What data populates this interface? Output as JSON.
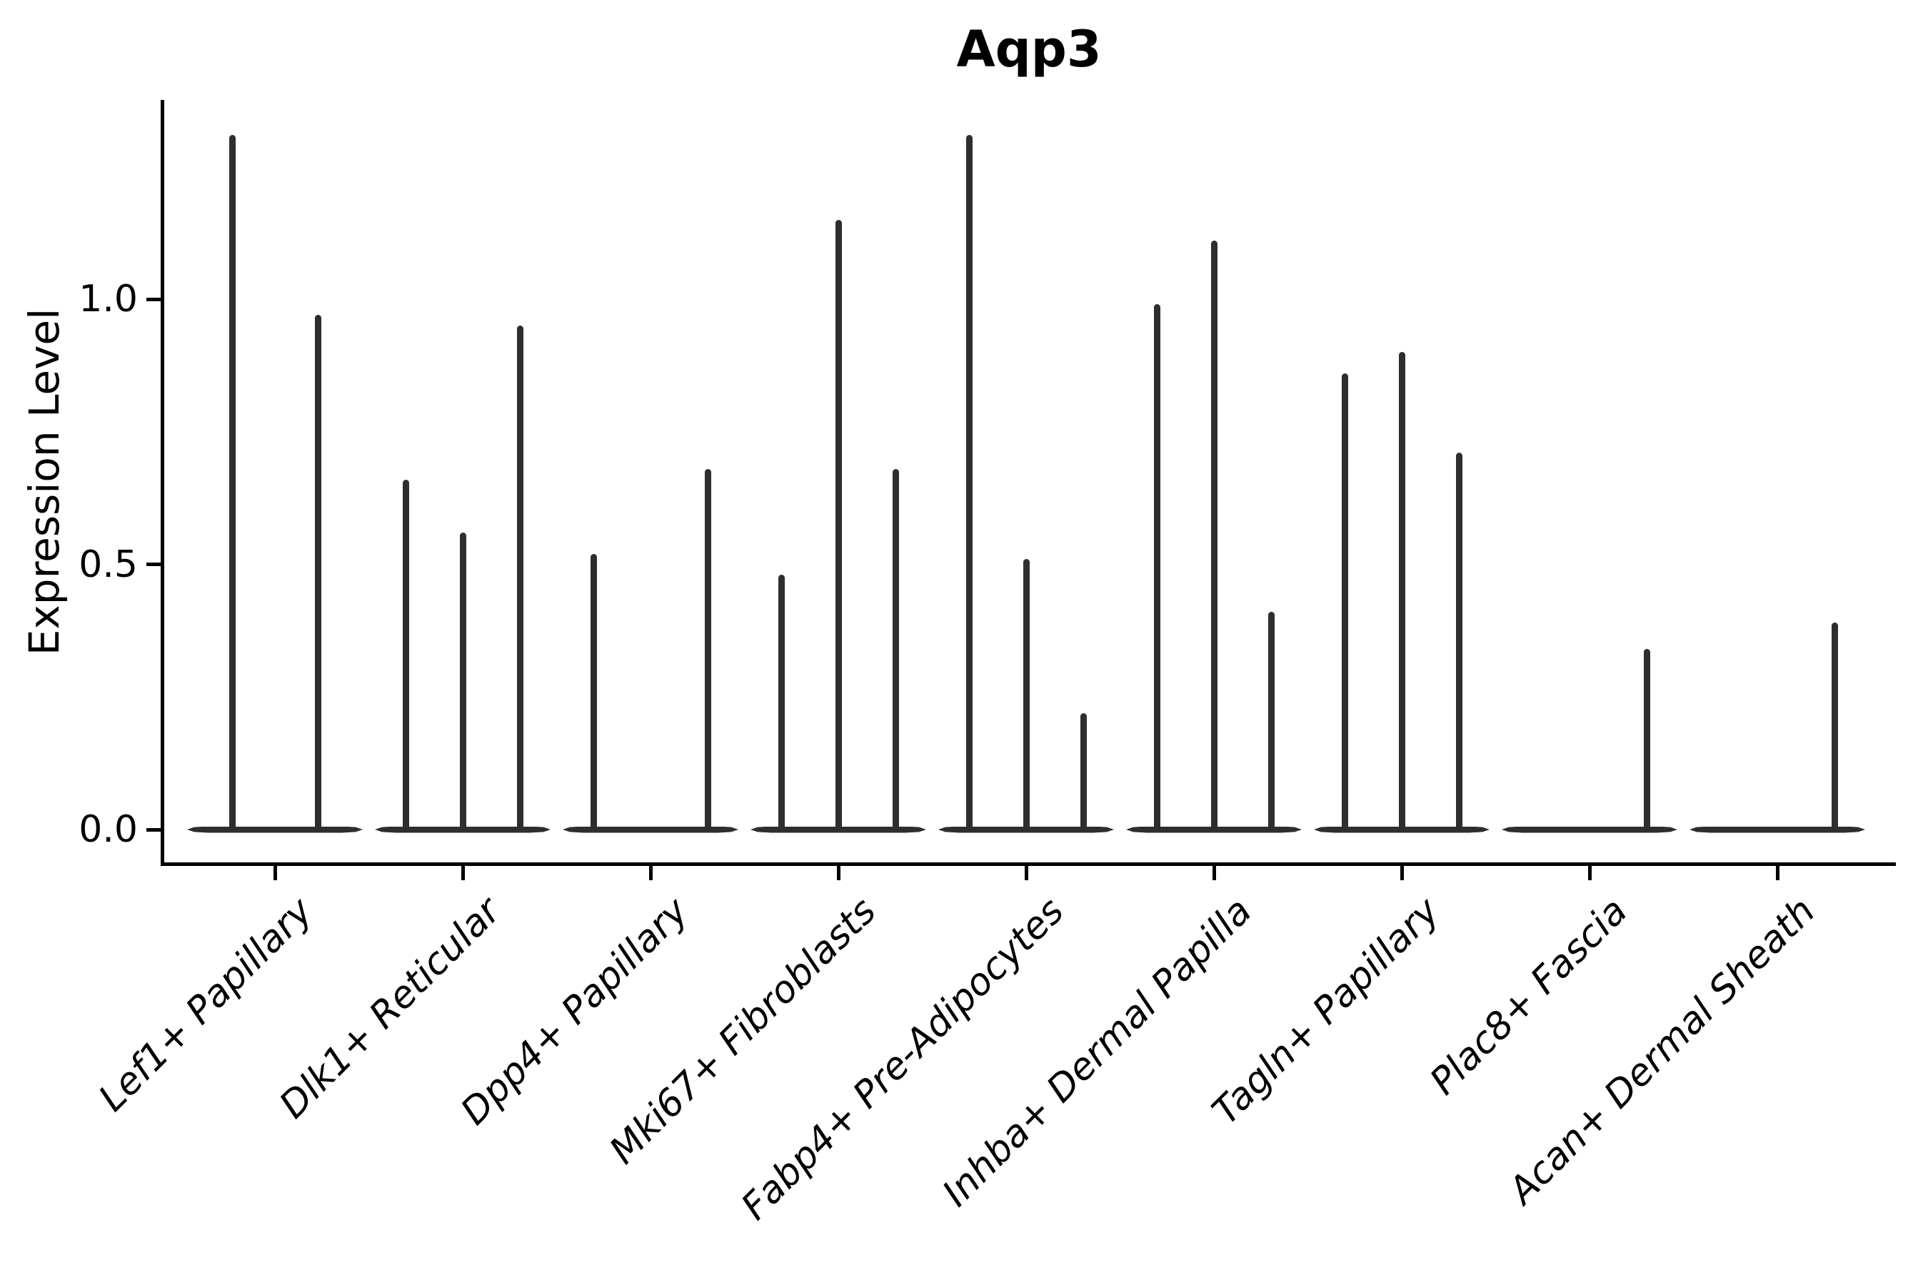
{
  "title": "Aqp3",
  "axes": {
    "ylabel": "Expression Level",
    "y_tick_labels": [
      "0.0",
      "0.5",
      "1.0"
    ]
  },
  "chart_data": {
    "type": "violin",
    "title": "Aqp3",
    "xlabel": "",
    "ylabel": "Expression Level",
    "ylim": [
      -0.07,
      1.38
    ],
    "y_ticks": [
      0.0,
      0.5,
      1.0
    ],
    "y_tick_labels": [
      "0.0",
      "0.5",
      "1.0"
    ],
    "grid": false,
    "legend": false,
    "x_tick_rotation_degrees": 45,
    "categories": [
      "Lef1+ Papillary",
      "Dlk1+ Reticular",
      "Dpp4+ Papillary",
      "Mki67+ Fibroblasts",
      "Fabp4+ Pre-Adipocytes",
      "Inhba+ Dermal Papilla",
      "Tagln+ Papillary",
      "Plac8+ Fascia",
      "Acan+ Dermal Sheath"
    ],
    "series": [
      {
        "category": "Lef1+ Papillary",
        "n_violins": 2,
        "violins": [
          {
            "position": 1,
            "max_expression": 1.31
          },
          {
            "position": 2,
            "max_expression": 0.97
          }
        ]
      },
      {
        "category": "Dlk1+ Reticular",
        "n_violins": 3,
        "violins": [
          {
            "position": 1,
            "max_expression": 0.66
          },
          {
            "position": 2,
            "max_expression": 0.56
          },
          {
            "position": 3,
            "max_expression": 0.95
          }
        ]
      },
      {
        "category": "Dpp4+ Papillary",
        "n_violins": 3,
        "violins": [
          {
            "position": 1,
            "max_expression": 0.52
          },
          {
            "position": 3,
            "max_expression": 0.68
          }
        ]
      },
      {
        "category": "Mki67+ Fibroblasts",
        "n_violins": 3,
        "violins": [
          {
            "position": 1,
            "max_expression": 0.48
          },
          {
            "position": 2,
            "max_expression": 1.15
          },
          {
            "position": 3,
            "max_expression": 0.68
          }
        ]
      },
      {
        "category": "Fabp4+ Pre-Adipocytes",
        "n_violins": 3,
        "violins": [
          {
            "position": 1,
            "max_expression": 1.31
          },
          {
            "position": 2,
            "max_expression": 0.51
          },
          {
            "position": 3,
            "max_expression": 0.22
          }
        ]
      },
      {
        "category": "Inhba+ Dermal Papilla",
        "n_violins": 3,
        "violins": [
          {
            "position": 1,
            "max_expression": 0.99
          },
          {
            "position": 2,
            "max_expression": 1.11
          },
          {
            "position": 3,
            "max_expression": 0.41
          }
        ]
      },
      {
        "category": "Tagln+ Papillary",
        "n_violins": 3,
        "violins": [
          {
            "position": 1,
            "max_expression": 0.86
          },
          {
            "position": 2,
            "max_expression": 0.9
          },
          {
            "position": 3,
            "max_expression": 0.71
          }
        ]
      },
      {
        "category": "Plac8+ Fascia",
        "n_violins": 3,
        "violins": [
          {
            "position": 3,
            "max_expression": 0.34
          }
        ]
      },
      {
        "category": "Acan+ Dermal Sheath",
        "n_violins": 3,
        "violins": [
          {
            "position": 3,
            "max_expression": 0.39
          }
        ]
      }
    ],
    "colors": {
      "violin": "#2e2e2e",
      "axis": "#000000",
      "text": "#000000",
      "background": "#ffffff"
    }
  }
}
